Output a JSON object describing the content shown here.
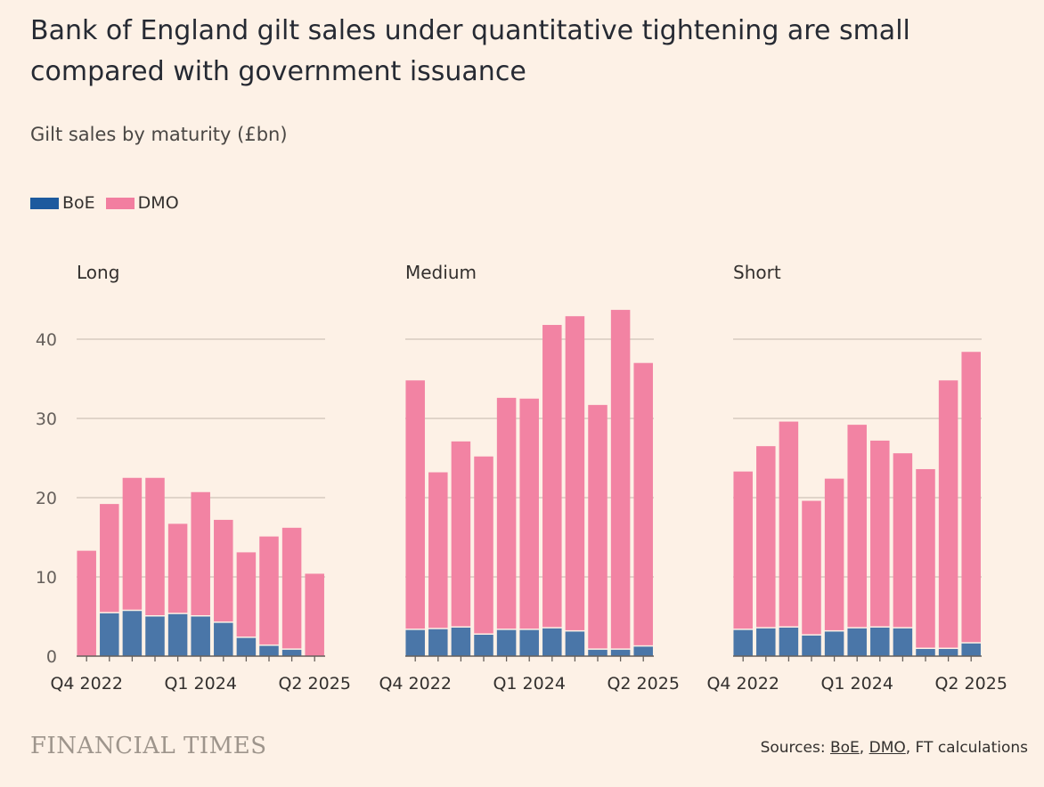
{
  "title": "Bank of England gilt sales under quantitative tightening are small compared with government issuance",
  "subtitle": "Gilt sales by maturity (£bn)",
  "legend": [
    {
      "label": "BoE",
      "color": "#1d5a9e"
    },
    {
      "label": "DMO",
      "color": "#f27ea0"
    }
  ],
  "colors": {
    "boe": "#4a76a8",
    "dmo": "#f283a3",
    "grid": "#d7cbbf",
    "axis": "#66605c"
  },
  "chart_data": [
    {
      "type": "bar",
      "stacked": true,
      "title": "Long",
      "categories": [
        "Q4 2022",
        "Q1 2023",
        "Q2 2023",
        "Q3 2023",
        "Q4 2023",
        "Q1 2024",
        "Q2 2024",
        "Q3 2024",
        "Q4 2024",
        "Q1 2025",
        "Q2 2025"
      ],
      "series": [
        {
          "name": "BoE",
          "values": [
            0,
            5.4,
            5.7,
            5.0,
            5.3,
            5.0,
            4.2,
            2.3,
            1.3,
            0.8,
            0
          ]
        },
        {
          "name": "DMO",
          "values": [
            13.3,
            13.8,
            16.8,
            17.5,
            11.4,
            15.7,
            13.0,
            10.8,
            13.8,
            15.4,
            10.4
          ]
        }
      ],
      "xticks": [
        "Q4 2022",
        "Q1 2024",
        "Q2 2025"
      ],
      "yticks": [
        0,
        10,
        20,
        30,
        40
      ],
      "ylim": [
        0,
        45
      ]
    },
    {
      "type": "bar",
      "stacked": true,
      "title": "Medium",
      "categories": [
        "Q4 2022",
        "Q1 2023",
        "Q2 2023",
        "Q3 2023",
        "Q4 2023",
        "Q1 2024",
        "Q2 2024",
        "Q3 2024",
        "Q4 2024",
        "Q1 2025",
        "Q2 2025"
      ],
      "series": [
        {
          "name": "BoE",
          "values": [
            3.3,
            3.4,
            3.6,
            2.7,
            3.3,
            3.3,
            3.5,
            3.1,
            0.8,
            0.8,
            1.2
          ]
        },
        {
          "name": "DMO",
          "values": [
            31.5,
            19.8,
            23.5,
            22.5,
            29.3,
            29.2,
            38.3,
            39.8,
            30.9,
            42.9,
            35.8
          ]
        }
      ],
      "xticks": [
        "Q4 2022",
        "Q1 2024",
        "Q2 2025"
      ],
      "yticks": [
        0,
        10,
        20,
        30,
        40
      ],
      "ylim": [
        0,
        45
      ]
    },
    {
      "type": "bar",
      "stacked": true,
      "title": "Short",
      "categories": [
        "Q4 2022",
        "Q1 2023",
        "Q2 2023",
        "Q3 2023",
        "Q4 2023",
        "Q1 2024",
        "Q2 2024",
        "Q3 2024",
        "Q4 2024",
        "Q1 2025",
        "Q2 2025"
      ],
      "series": [
        {
          "name": "BoE",
          "values": [
            3.3,
            3.5,
            3.6,
            2.6,
            3.1,
            3.5,
            3.6,
            3.5,
            0.9,
            0.9,
            1.6
          ]
        },
        {
          "name": "DMO",
          "values": [
            20.0,
            23.0,
            26.0,
            17.0,
            19.3,
            25.7,
            23.6,
            22.1,
            22.7,
            33.9,
            36.8
          ]
        }
      ],
      "xticks": [
        "Q4 2022",
        "Q1 2024",
        "Q2 2025"
      ],
      "yticks": [
        0,
        10,
        20,
        30,
        40
      ],
      "ylim": [
        0,
        45
      ]
    }
  ],
  "footer": {
    "logo": "FINANCIAL TIMES",
    "sources_prefix": "Sources: ",
    "source_boe": "BoE",
    "source_sep": ", ",
    "source_dmo": "DMO",
    "source_suffix": ", FT calculations"
  }
}
